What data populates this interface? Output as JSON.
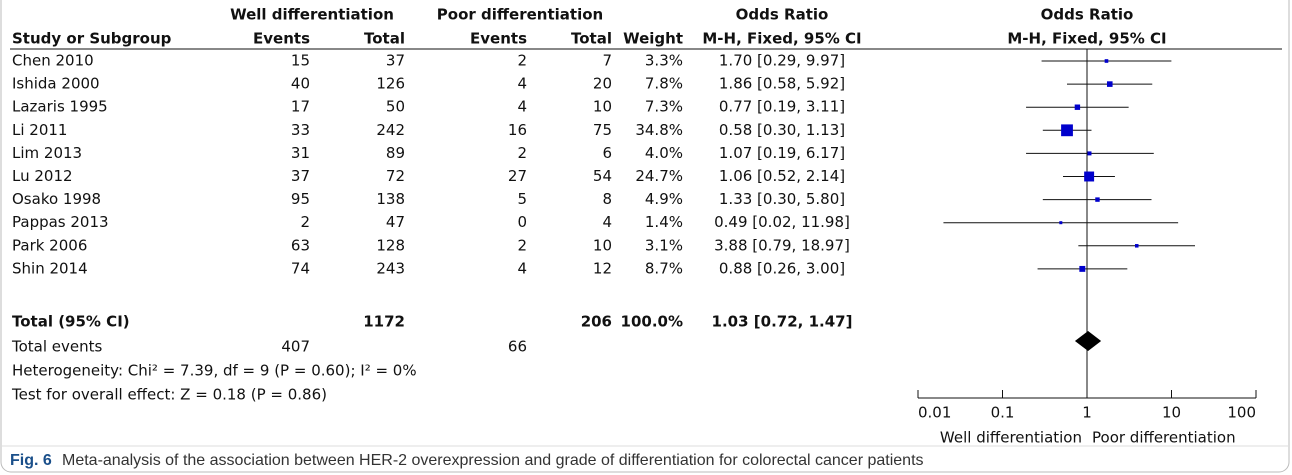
{
  "chart_data": {
    "type": "forest",
    "groups": [
      "Well differentiation",
      "Poor differentiation",
      "Odds Ratio",
      "Odds Ratio"
    ],
    "columns": [
      "Study or Subgroup",
      "Events",
      "Total",
      "Events",
      "Total",
      "Weight",
      "M-H, Fixed, 95% CI",
      "M-H, Fixed, 95% CI"
    ],
    "categories": [
      "Chen 2010",
      "Ishida 2000",
      "Lazaris 1995",
      "Li 2011",
      "Lim 2013",
      "Lu 2012",
      "Osako 1998",
      "Pappas 2013",
      "Park 2006",
      "Shin 2014"
    ],
    "events1": [
      15,
      40,
      17,
      33,
      31,
      37,
      95,
      2,
      63,
      74
    ],
    "total1": [
      37,
      126,
      50,
      242,
      89,
      72,
      138,
      47,
      128,
      243
    ],
    "events2": [
      2,
      4,
      4,
      16,
      2,
      27,
      5,
      0,
      2,
      4
    ],
    "total2": [
      7,
      20,
      10,
      75,
      6,
      54,
      8,
      4,
      10,
      12
    ],
    "weights": [
      3.3,
      7.8,
      7.3,
      34.8,
      4.0,
      24.7,
      4.9,
      1.4,
      3.1,
      8.7
    ],
    "weight_labels": [
      "3.3%",
      "7.8%",
      "7.3%",
      "34.8%",
      "4.0%",
      "24.7%",
      "4.9%",
      "1.4%",
      "3.1%",
      "8.7%"
    ],
    "values": [
      1.7,
      1.86,
      0.77,
      0.58,
      1.07,
      1.06,
      1.33,
      0.49,
      3.88,
      0.88
    ],
    "lower": [
      0.29,
      0.58,
      0.19,
      0.3,
      0.19,
      0.52,
      0.3,
      0.02,
      0.79,
      0.26
    ],
    "upper": [
      9.97,
      5.92,
      3.11,
      1.13,
      6.17,
      2.14,
      5.8,
      11.98,
      18.97,
      3.0
    ],
    "value_labels": [
      "1.70 [0.29, 9.97]",
      "1.86 [0.58, 5.92]",
      "0.77 [0.19, 3.11]",
      "0.58 [0.30, 1.13]",
      "1.07 [0.19, 6.17]",
      "1.06 [0.52, 2.14]",
      "1.33 [0.30, 5.80]",
      "0.49 [0.02, 11.98]",
      "3.88 [0.79, 18.97]",
      "0.88 [0.26, 3.00]"
    ],
    "total": {
      "name": "Total (95% CI)",
      "total1": 1172,
      "total2": 206,
      "weight_label": "100.0%",
      "value": 1.03,
      "lower": 0.72,
      "upper": 1.47,
      "value_label": "1.03 [0.72, 1.47]"
    },
    "total_events": {
      "name": "Total events",
      "events1": 407,
      "events2": 66
    },
    "heterogeneity": "Heterogeneity: Chi² = 7.39, df = 9 (P = 0.60); I² = 0%",
    "overall_effect": "Test for overall effect: Z = 0.18 (P = 0.86)",
    "xlim": [
      0.01,
      100
    ],
    "xticks": [
      0.01,
      0.1,
      1,
      10,
      100
    ],
    "log_scale": true,
    "xlabel_left": "Well differentiation",
    "xlabel_right": "Poor differentiation",
    "color": "#0000cc",
    "total_color": "#000000"
  },
  "caption": {
    "label": "Fig. 6",
    "text": "Meta-analysis of the association between HER-2 overexpression and grade of differentiation for colorectal cancer patients"
  }
}
